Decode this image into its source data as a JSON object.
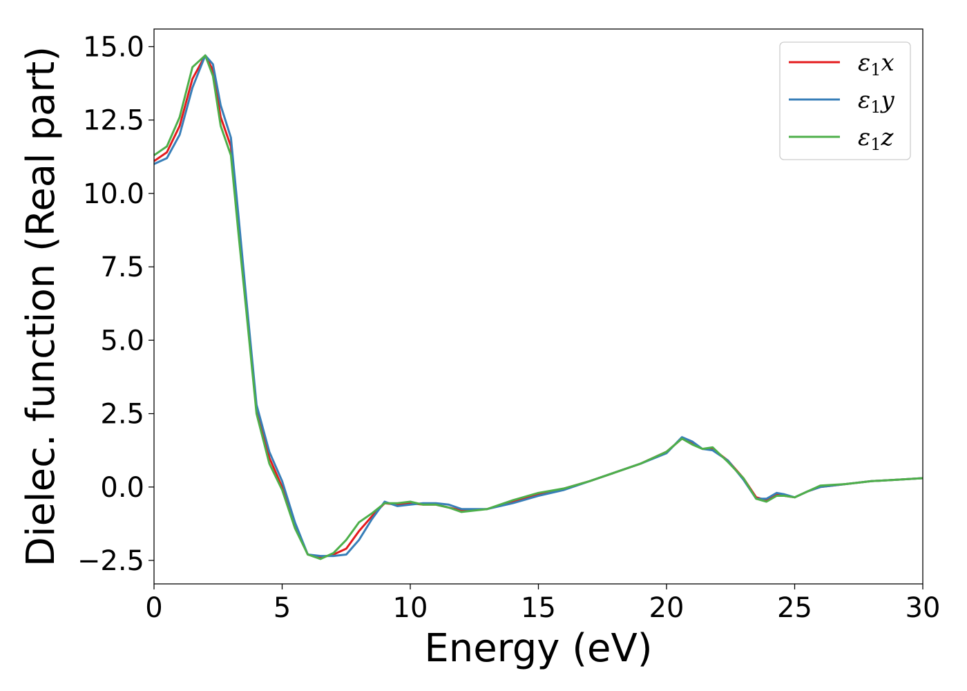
{
  "chart_data": {
    "type": "line",
    "title": "",
    "xlabel": "Energy (eV)",
    "ylabel": "Dielec. function (Real part)",
    "xlim": [
      0,
      30
    ],
    "ylim": [
      -3.3,
      15.6
    ],
    "xticks": [
      0,
      5,
      10,
      15,
      20,
      25,
      30
    ],
    "xtick_labels": [
      "0",
      "5",
      "10",
      "15",
      "20",
      "25",
      "30"
    ],
    "yticks": [
      -2.5,
      0.0,
      2.5,
      5.0,
      7.5,
      10.0,
      12.5,
      15.0
    ],
    "ytick_labels": [
      "−2.5",
      "0.0",
      "2.5",
      "5.0",
      "7.5",
      "10.0",
      "12.5",
      "15.0"
    ],
    "grid": false,
    "legend_position": "top-right",
    "series": [
      {
        "name": "ε₁x",
        "legend_base": "ε",
        "legend_sub": "1",
        "legend_var": "x",
        "color": "#e41a1c",
        "x": [
          0,
          0.5,
          1.0,
          1.5,
          2.0,
          2.3,
          2.6,
          3.0,
          3.3,
          3.6,
          4.0,
          4.5,
          5.0,
          5.5,
          6.0,
          6.5,
          7.0,
          7.5,
          8.0,
          8.5,
          9.0,
          9.5,
          10.0,
          10.5,
          11.0,
          11.5,
          12.0,
          13.0,
          14.0,
          15.0,
          16.0,
          17.0,
          18.0,
          19.0,
          20.0,
          20.6,
          21.0,
          21.4,
          21.8,
          22.4,
          23.0,
          23.5,
          23.9,
          24.3,
          24.6,
          25.0,
          25.5,
          26.0,
          27.0,
          28.0,
          29.0,
          30.0
        ],
        "y": [
          11.1,
          11.4,
          12.3,
          13.9,
          14.7,
          14.2,
          12.6,
          11.6,
          8.8,
          6.2,
          2.6,
          1.0,
          0.0,
          -1.3,
          -2.3,
          -2.4,
          -2.3,
          -2.1,
          -1.5,
          -1.0,
          -0.55,
          -0.6,
          -0.55,
          -0.6,
          -0.6,
          -0.7,
          -0.8,
          -0.75,
          -0.5,
          -0.25,
          -0.05,
          0.2,
          0.5,
          0.8,
          1.2,
          1.65,
          1.5,
          1.3,
          1.3,
          0.9,
          0.3,
          -0.35,
          -0.45,
          -0.25,
          -0.3,
          -0.35,
          -0.15,
          0.0,
          0.1,
          0.2,
          0.25,
          0.3
        ]
      },
      {
        "name": "ε₁y",
        "legend_base": "ε",
        "legend_sub": "1",
        "legend_var": "y",
        "color": "#377eb8",
        "x": [
          0,
          0.5,
          1.0,
          1.5,
          2.0,
          2.3,
          2.6,
          3.0,
          3.3,
          3.6,
          4.0,
          4.5,
          5.0,
          5.5,
          6.0,
          6.5,
          7.0,
          7.5,
          8.0,
          8.5,
          9.0,
          9.5,
          10.0,
          10.5,
          11.0,
          11.5,
          12.0,
          13.0,
          14.0,
          15.0,
          16.0,
          17.0,
          18.0,
          19.0,
          20.0,
          20.6,
          21.0,
          21.4,
          21.8,
          22.4,
          23.0,
          23.5,
          23.9,
          24.3,
          24.6,
          25.0,
          25.5,
          26.0,
          27.0,
          28.0,
          29.0,
          30.0
        ],
        "y": [
          11.0,
          11.2,
          12.0,
          13.6,
          14.7,
          14.4,
          13.0,
          11.9,
          9.2,
          6.4,
          2.8,
          1.2,
          0.2,
          -1.2,
          -2.3,
          -2.35,
          -2.35,
          -2.3,
          -1.8,
          -1.1,
          -0.5,
          -0.65,
          -0.6,
          -0.55,
          -0.55,
          -0.6,
          -0.75,
          -0.75,
          -0.55,
          -0.3,
          -0.1,
          0.2,
          0.5,
          0.8,
          1.15,
          1.7,
          1.55,
          1.3,
          1.25,
          0.9,
          0.25,
          -0.4,
          -0.4,
          -0.2,
          -0.25,
          -0.35,
          -0.15,
          0.0,
          0.1,
          0.2,
          0.25,
          0.3
        ]
      },
      {
        "name": "ε₁z",
        "legend_base": "ε",
        "legend_sub": "1",
        "legend_var": "z",
        "color": "#4daf4a",
        "x": [
          0,
          0.5,
          1.0,
          1.5,
          2.0,
          2.3,
          2.6,
          3.0,
          3.3,
          3.6,
          4.0,
          4.5,
          5.0,
          5.5,
          6.0,
          6.5,
          7.0,
          7.5,
          8.0,
          8.5,
          9.0,
          9.5,
          10.0,
          10.5,
          11.0,
          11.5,
          12.0,
          13.0,
          14.0,
          15.0,
          16.0,
          17.0,
          18.0,
          19.0,
          20.0,
          20.6,
          21.0,
          21.4,
          21.8,
          22.4,
          23.0,
          23.5,
          23.9,
          24.3,
          24.6,
          25.0,
          25.5,
          26.0,
          27.0,
          28.0,
          29.0,
          30.0
        ],
        "y": [
          11.3,
          11.6,
          12.6,
          14.3,
          14.7,
          14.0,
          12.3,
          11.3,
          8.6,
          6.0,
          2.5,
          0.8,
          -0.1,
          -1.4,
          -2.3,
          -2.45,
          -2.25,
          -1.8,
          -1.2,
          -0.9,
          -0.55,
          -0.55,
          -0.5,
          -0.6,
          -0.6,
          -0.7,
          -0.85,
          -0.75,
          -0.45,
          -0.2,
          -0.05,
          0.2,
          0.5,
          0.8,
          1.2,
          1.65,
          1.45,
          1.3,
          1.35,
          0.85,
          0.3,
          -0.4,
          -0.5,
          -0.3,
          -0.3,
          -0.35,
          -0.15,
          0.05,
          0.1,
          0.2,
          0.25,
          0.3
        ]
      }
    ]
  }
}
